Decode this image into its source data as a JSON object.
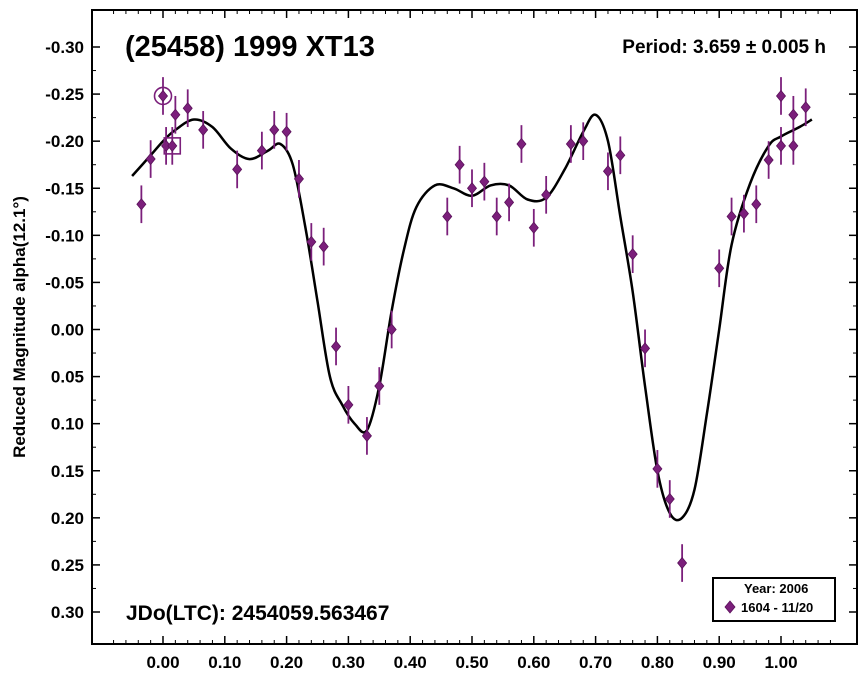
{
  "chart_data": {
    "type": "scatter",
    "title": "(25458) 1999 XT13",
    "period_text": "Period: 3.659 ± 0.005 h",
    "epoch_text": "JDo(LTC): 2454059.563467",
    "xlabel": "",
    "ylabel": "Reduced Magnitude alpha(12.1°)",
    "xlim": [
      -0.1,
      1.12
    ],
    "ylim": [
      -0.33,
      0.34
    ],
    "y_inverted": true,
    "grid": false,
    "legend_position": "bottom-right",
    "legend": {
      "header": "Year: 2006",
      "entries": [
        "1604 - 11/20"
      ]
    },
    "x_ticks": [
      "0.00",
      "0.10",
      "0.20",
      "0.30",
      "0.40",
      "0.50",
      "0.60",
      "0.70",
      "0.80",
      "0.90",
      "1.00"
    ],
    "x_tick_values": [
      0,
      0.1,
      0.2,
      0.3,
      0.4,
      0.5,
      0.6,
      0.7,
      0.8,
      0.9,
      1.0
    ],
    "y_ticks": [
      "-0.30",
      "-0.25",
      "-0.20",
      "-0.15",
      "-0.10",
      "-0.05",
      "0.00",
      "0.05",
      "0.10",
      "0.15",
      "0.20",
      "0.25",
      "0.30"
    ],
    "y_tick_values": [
      -0.3,
      -0.25,
      -0.2,
      -0.15,
      -0.1,
      -0.05,
      0.0,
      0.05,
      0.1,
      0.15,
      0.2,
      0.25,
      0.3
    ],
    "series": [
      {
        "name": "1604 - 11/20",
        "marker": "diamond",
        "color": "#7b1f7b",
        "error": 0.02,
        "x": [
          -0.035,
          -0.02,
          0.0,
          0.005,
          0.015,
          0.02,
          0.04,
          0.065,
          0.12,
          0.16,
          0.18,
          0.2,
          0.22,
          0.24,
          0.26,
          0.28,
          0.3,
          0.33,
          0.35,
          0.37,
          0.46,
          0.48,
          0.5,
          0.52,
          0.54,
          0.56,
          0.58,
          0.6,
          0.62,
          0.66,
          0.68,
          0.72,
          0.74,
          0.76,
          0.78,
          0.8,
          0.82,
          0.84,
          0.9,
          0.92,
          0.94,
          0.96,
          0.98,
          1.0,
          1.0,
          1.02,
          1.02,
          1.04
        ],
        "y": [
          -0.133,
          -0.181,
          -0.248,
          -0.195,
          -0.195,
          -0.228,
          -0.235,
          -0.212,
          -0.17,
          -0.19,
          -0.212,
          -0.21,
          -0.16,
          -0.093,
          -0.088,
          0.018,
          0.08,
          0.113,
          0.06,
          0.0,
          -0.12,
          -0.175,
          -0.15,
          -0.157,
          -0.12,
          -0.135,
          -0.197,
          -0.108,
          -0.143,
          -0.197,
          -0.2,
          -0.168,
          -0.185,
          -0.08,
          0.02,
          0.148,
          0.18,
          0.248,
          -0.065,
          -0.12,
          -0.123,
          -0.133,
          -0.18,
          -0.248,
          -0.195,
          -0.228,
          -0.195,
          -0.236
        ]
      }
    ],
    "fit_curve": {
      "name": "",
      "x": [
        -0.05,
        -0.02,
        0.0,
        0.02,
        0.05,
        0.08,
        0.11,
        0.14,
        0.17,
        0.19,
        0.21,
        0.23,
        0.25,
        0.27,
        0.29,
        0.31,
        0.33,
        0.35,
        0.37,
        0.39,
        0.41,
        0.44,
        0.47,
        0.5,
        0.53,
        0.56,
        0.59,
        0.62,
        0.65,
        0.68,
        0.7,
        0.72,
        0.74,
        0.76,
        0.78,
        0.8,
        0.82,
        0.84,
        0.86,
        0.88,
        0.9,
        0.92,
        0.95,
        0.98,
        1.0,
        1.03,
        1.05
      ],
      "y": [
        -0.163,
        -0.185,
        -0.2,
        -0.212,
        -0.223,
        -0.215,
        -0.192,
        -0.181,
        -0.19,
        -0.197,
        -0.175,
        -0.11,
        -0.03,
        0.05,
        0.08,
        0.1,
        0.107,
        0.06,
        -0.02,
        -0.085,
        -0.13,
        -0.153,
        -0.15,
        -0.142,
        -0.153,
        -0.153,
        -0.138,
        -0.14,
        -0.17,
        -0.21,
        -0.228,
        -0.2,
        -0.12,
        -0.04,
        0.06,
        0.15,
        0.195,
        0.2,
        0.17,
        0.09,
        0.0,
        -0.09,
        -0.155,
        -0.195,
        -0.205,
        -0.215,
        -0.223
      ]
    },
    "marked_points": [
      {
        "x": 0.0,
        "y": -0.248,
        "shape": "circle"
      },
      {
        "x": 0.015,
        "y": -0.195,
        "shape": "square"
      }
    ]
  }
}
